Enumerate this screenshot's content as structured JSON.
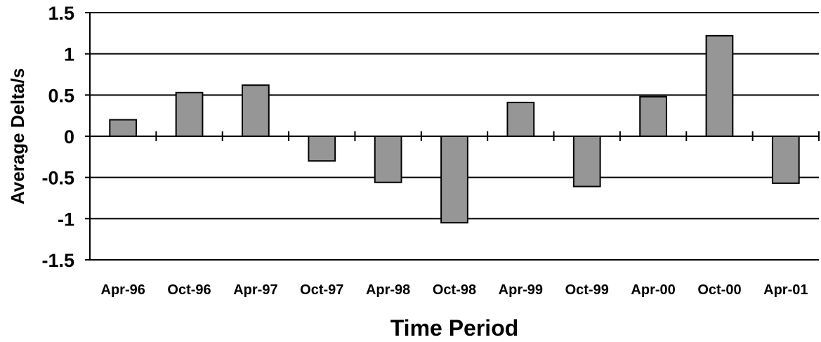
{
  "chart_data": {
    "type": "bar",
    "categories": [
      "Apr-96",
      "Oct-96",
      "Apr-97",
      "Oct-97",
      "Apr-98",
      "Oct-98",
      "Apr-99",
      "Oct-99",
      "Apr-00",
      "Oct-00",
      "Apr-01"
    ],
    "values": [
      0.2,
      0.53,
      0.62,
      -0.3,
      -0.56,
      -1.05,
      0.41,
      -0.61,
      0.48,
      1.22,
      -0.57
    ],
    "xlabel": "Time Period",
    "ylabel": "Average Delta/s",
    "ylim": [
      -1.5,
      1.5
    ],
    "yticks": [
      "1.5",
      "1",
      "0.5",
      "0",
      "-0.5",
      "-1",
      "-1.5"
    ],
    "grid": true,
    "legend": "none",
    "colors": {
      "bar_fill": "#969696",
      "bar_stroke": "#000000",
      "grid": "#000000"
    }
  }
}
